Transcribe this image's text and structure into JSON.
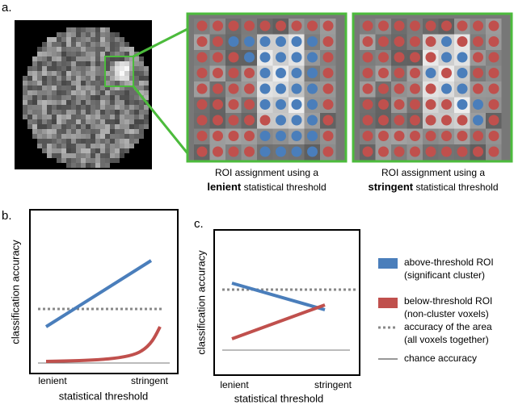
{
  "panel_labels": [
    "a.",
    "b.",
    "c."
  ],
  "zoom_captions": [
    {
      "line1": "ROI assignment using a",
      "bold": "lenient",
      "rest": "statistical threshold"
    },
    {
      "line1": "ROI assignment using a",
      "bold": "stringent",
      "rest": "statistical threshold"
    }
  ],
  "charts": [
    {
      "ylabel": "classification accuracy",
      "xticks": [
        "lenient",
        "stringent"
      ],
      "xlabel": "statistical threshold"
    },
    {
      "ylabel": "classification accuracy",
      "xticks": [
        "lenient",
        "stringent"
      ],
      "xlabel": "statistical threshold"
    }
  ],
  "legend": [
    {
      "line1": "above-threshold ROI",
      "line2": "(significant cluster)"
    },
    {
      "line1": "below-threshold ROI",
      "line2": "(non-cluster voxels)"
    },
    {
      "line1": "accuracy of the area",
      "line2": "(all voxels together)"
    },
    {
      "line1": "chance accuracy"
    }
  ]
}
